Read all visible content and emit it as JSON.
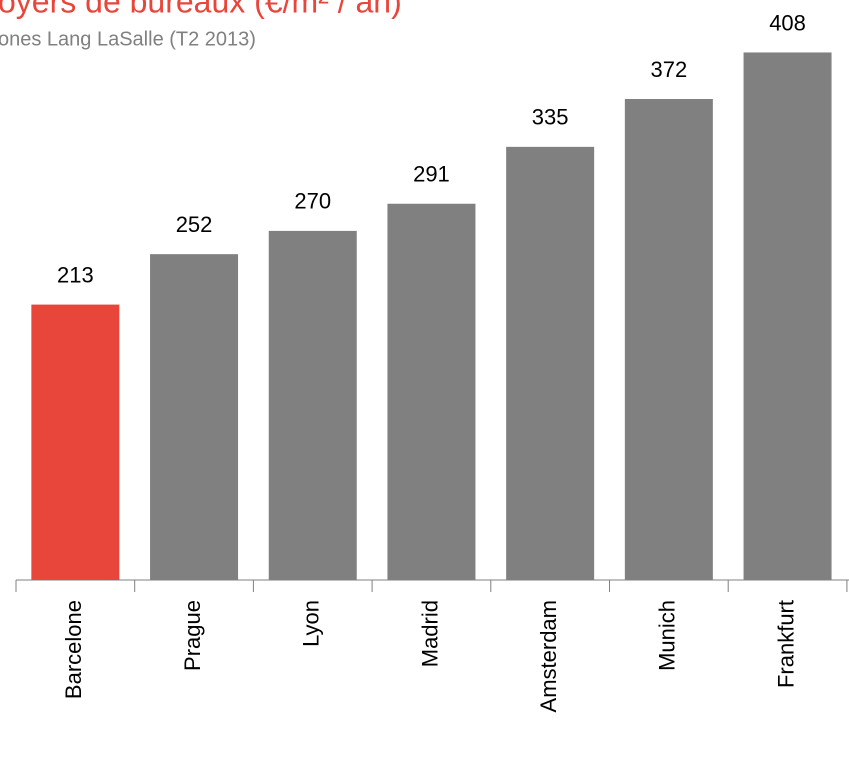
{
  "chart_data": {
    "type": "bar",
    "title": "oyers de bureaux (€/m² / an)",
    "subtitle": "ones Lang LaSalle (T2 2013)",
    "categories": [
      "Barcelone",
      "Prague",
      "Lyon",
      "Madrid",
      "Amsterdam",
      "Munich",
      "Frankfurt"
    ],
    "values": [
      213,
      252,
      270,
      291,
      335,
      372,
      408
    ],
    "colors": [
      "#e8463a",
      "#808080",
      "#808080",
      "#808080",
      "#808080",
      "#808080",
      "#808080"
    ]
  }
}
